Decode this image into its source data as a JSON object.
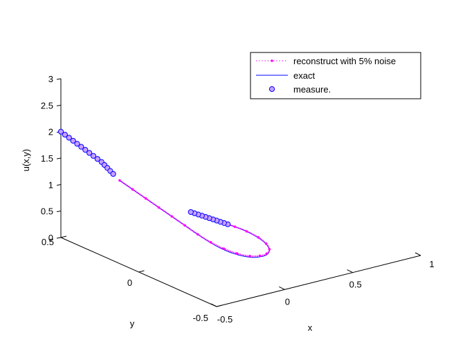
{
  "chart_data": {
    "type": "line",
    "projection": "3d",
    "title": "",
    "xlabel": "x",
    "ylabel": "y",
    "zlabel": "u(x,y)",
    "xlim": [
      -0.5,
      1
    ],
    "ylim": [
      -0.5,
      0.5
    ],
    "zlim": [
      0,
      3
    ],
    "x_ticks": [
      "-0.5",
      "0",
      "0.5",
      "1"
    ],
    "y_ticks": [
      "-0.5",
      "0",
      "0.5"
    ],
    "z_ticks": [
      "0",
      "0.5",
      "1",
      "1.5",
      "2",
      "2.5",
      "3"
    ],
    "grid": false,
    "legend_position": "top-right",
    "series": [
      {
        "name": "reconstruct with 5% noise",
        "style": "dotted-with-point-markers",
        "color": "#ff00ff",
        "points": [
          [
            -0.32,
            0.28,
            1.25
          ],
          [
            -0.27,
            0.24,
            1.1
          ],
          [
            -0.22,
            0.2,
            0.95
          ],
          [
            -0.17,
            0.16,
            0.8
          ],
          [
            -0.12,
            0.12,
            0.65
          ],
          [
            -0.07,
            0.08,
            0.5
          ],
          [
            -0.02,
            0.04,
            0.35
          ],
          [
            0.03,
            0.0,
            0.22
          ],
          [
            0.08,
            -0.04,
            0.12
          ],
          [
            0.13,
            -0.08,
            0.05
          ],
          [
            0.18,
            -0.12,
            0.02
          ],
          [
            0.23,
            -0.14,
            0.02
          ],
          [
            0.27,
            -0.15,
            0.05
          ],
          [
            0.3,
            -0.14,
            0.1
          ],
          [
            0.31,
            -0.11,
            0.16
          ],
          [
            0.3,
            -0.07,
            0.23
          ],
          [
            0.27,
            -0.02,
            0.3
          ],
          [
            0.23,
            0.02,
            0.36
          ],
          [
            0.2,
            0.04,
            0.4
          ]
        ]
      },
      {
        "name": "exact",
        "style": "solid",
        "color": "#0000ff",
        "points": [
          [
            -0.32,
            0.28,
            1.25
          ],
          [
            -0.27,
            0.24,
            1.1
          ],
          [
            -0.22,
            0.2,
            0.95
          ],
          [
            -0.17,
            0.16,
            0.8
          ],
          [
            -0.12,
            0.12,
            0.65
          ],
          [
            -0.07,
            0.08,
            0.5
          ],
          [
            -0.02,
            0.04,
            0.35
          ],
          [
            0.03,
            0.0,
            0.21
          ],
          [
            0.08,
            -0.04,
            0.1
          ],
          [
            0.13,
            -0.08,
            0.03
          ],
          [
            0.18,
            -0.12,
            0.0
          ],
          [
            0.23,
            -0.14,
            0.0
          ],
          [
            0.27,
            -0.15,
            0.03
          ],
          [
            0.3,
            -0.14,
            0.08
          ],
          [
            0.31,
            -0.11,
            0.15
          ],
          [
            0.3,
            -0.07,
            0.22
          ],
          [
            0.27,
            -0.02,
            0.3
          ],
          [
            0.23,
            0.02,
            0.36
          ],
          [
            0.2,
            0.04,
            0.4
          ]
        ]
      },
      {
        "name": "measure.",
        "style": "circle-markers",
        "color": "#0000ff",
        "fill": "#c8a0ff",
        "points": [
          [
            -0.5,
            0.5,
            2.0
          ],
          [
            -0.485,
            0.487,
            1.95
          ],
          [
            -0.47,
            0.474,
            1.9
          ],
          [
            -0.455,
            0.461,
            1.85
          ],
          [
            -0.44,
            0.448,
            1.8
          ],
          [
            -0.425,
            0.435,
            1.75
          ],
          [
            -0.41,
            0.422,
            1.7
          ],
          [
            -0.395,
            0.409,
            1.65
          ],
          [
            -0.38,
            0.396,
            1.6
          ],
          [
            -0.365,
            0.383,
            1.55
          ],
          [
            -0.35,
            0.37,
            1.5
          ],
          [
            -0.34,
            0.36,
            1.45
          ],
          [
            -0.33,
            0.35,
            1.4
          ],
          [
            -0.32,
            0.34,
            1.35
          ],
          [
            -0.31,
            0.33,
            1.3
          ],
          [
            0.2,
            0.04,
            0.4
          ],
          [
            0.19,
            0.055,
            0.41
          ],
          [
            0.18,
            0.07,
            0.42
          ],
          [
            0.17,
            0.085,
            0.43
          ],
          [
            0.16,
            0.1,
            0.44
          ],
          [
            0.15,
            0.115,
            0.45
          ],
          [
            0.14,
            0.13,
            0.46
          ],
          [
            0.13,
            0.145,
            0.47
          ],
          [
            0.12,
            0.16,
            0.48
          ],
          [
            0.11,
            0.175,
            0.49
          ],
          [
            0.1,
            0.19,
            0.5
          ]
        ]
      }
    ]
  }
}
